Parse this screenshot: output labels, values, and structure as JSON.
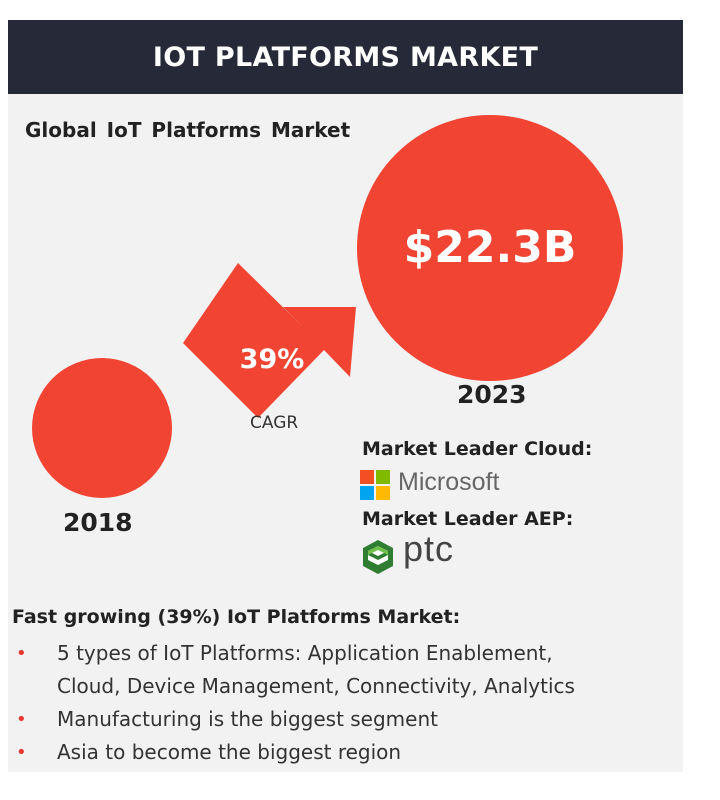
{
  "header": {
    "title": "IOT PLATFORMS MARKET"
  },
  "subtitle": "Global IoT Platforms Market",
  "graphic": {
    "value_2023": "$22.3B",
    "year_start": "2018",
    "year_end": "2023",
    "cagr_value": "39%",
    "cagr_label": "CAGR",
    "accent_color": "#f24432"
  },
  "leaders": {
    "cloud_label": "Market Leader Cloud:",
    "cloud_company": "Microsoft",
    "aep_label": "Market Leader AEP:",
    "aep_company": "ptc"
  },
  "bullets": {
    "title": "Fast growing (39%) IoT Platforms Market:",
    "items": [
      "5 types of IoT Platforms: Application Enablement,",
      "Cloud, Device Management, Connectivity, Analytics",
      "Manufacturing is the biggest segment",
      "Asia to become the biggest region"
    ]
  }
}
